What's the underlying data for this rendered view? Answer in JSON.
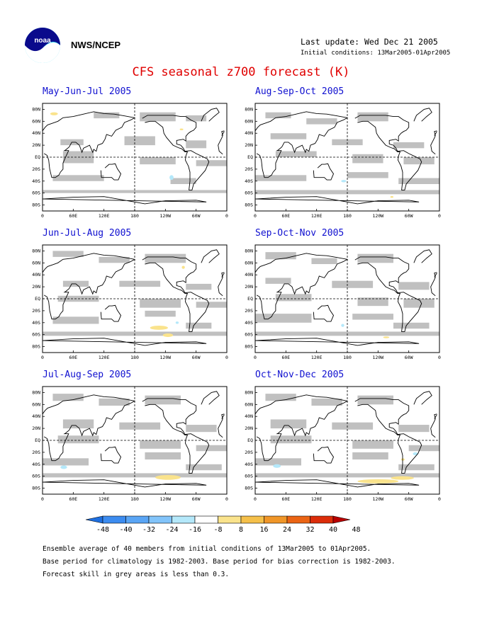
{
  "header": {
    "agency": "NWS/NCEP",
    "last_update": "Last update: Wed Dec 21 2005",
    "initial_conditions": "Initial conditions: 13Mar2005-01Apr2005",
    "title": "CFS seasonal z700 forecast (K)"
  },
  "logo": {
    "icon": "noaa-logo-icon",
    "text": "noaa"
  },
  "map_axes": {
    "lat_labels": [
      "80N",
      "60N",
      "40N",
      "20N",
      "EQ",
      "20S",
      "40S",
      "60S",
      "80S"
    ],
    "lon_labels": [
      "0",
      "60E",
      "120E",
      "180",
      "120W",
      "60W",
      "0"
    ]
  },
  "panels": [
    {
      "title": "May-Jun-Jul 2005"
    },
    {
      "title": "Aug-Sep-Oct 2005"
    },
    {
      "title": "Jun-Jul-Aug 2005"
    },
    {
      "title": "Sep-Oct-Nov 2005"
    },
    {
      "title": "Jul-Aug-Sep 2005"
    },
    {
      "title": "Oct-Nov-Dec 2005"
    }
  ],
  "colorbar": {
    "labels": [
      "-48",
      "-40",
      "-32",
      "-24",
      "-16",
      "-8",
      "8",
      "16",
      "24",
      "32",
      "40",
      "48"
    ],
    "colors": [
      "#1e6fe0",
      "#3c8cf0",
      "#5aa5f5",
      "#82c4fa",
      "#b4e8fa",
      "#ffffff",
      "#fae38c",
      "#f5c04a",
      "#f09628",
      "#eb6414",
      "#dc2d0a",
      "#b90000"
    ]
  },
  "colors": {
    "title": "#e00000",
    "panel_title": "#1010d0",
    "low_skill_grey": "#c0c0c0"
  },
  "notes": [
    "Ensemble average of 40 members from initial conditions of 13Mar2005 to 01Apr2005.",
    "Base period for climatology is 1982-2003. Base period for bias correction is 1982-2003.",
    "Forecast skill in grey areas is less than 0.3."
  ]
}
